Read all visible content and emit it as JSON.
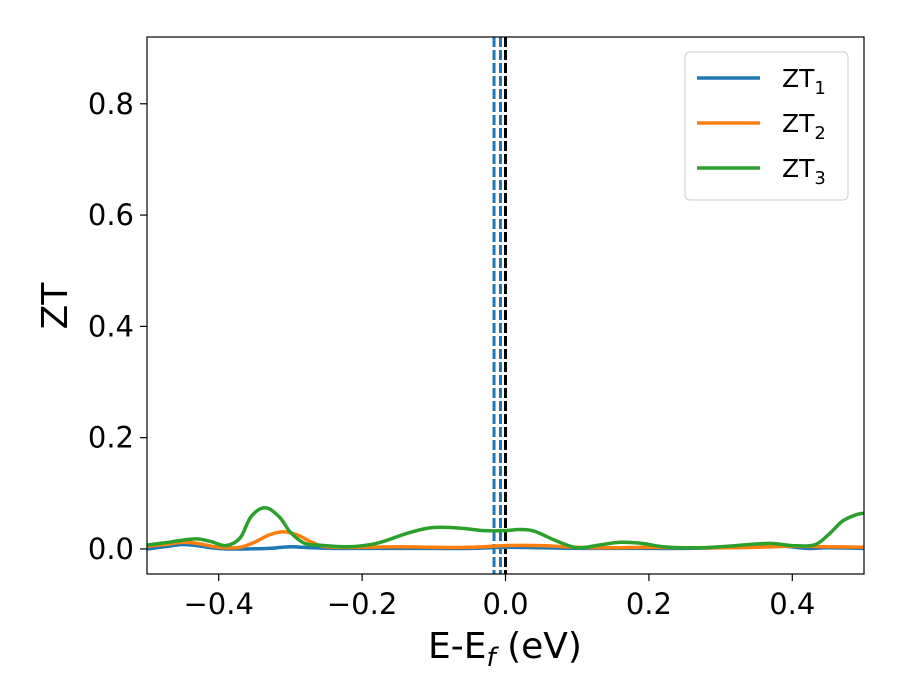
{
  "chart_data": {
    "type": "line",
    "xlabel": "E-E",
    "xlabel_sub": "f",
    "xlabel_unit": " (eV)",
    "ylabel": "ZT",
    "xlim": [
      -0.5,
      0.5
    ],
    "ylim": [
      -0.045,
      0.92
    ],
    "xticks": [
      -0.4,
      -0.2,
      0.0,
      0.2,
      0.4
    ],
    "xtick_labels": [
      "−0.4",
      "−0.2",
      "0.0",
      "0.2",
      "0.4"
    ],
    "yticks": [
      0.0,
      0.2,
      0.4,
      0.6,
      0.8
    ],
    "ytick_labels": [
      "0.0",
      "0.2",
      "0.4",
      "0.6",
      "0.8"
    ],
    "grid": false,
    "legend": "top-right",
    "vlines": [
      {
        "x": -0.016,
        "style": "dashed",
        "color": "#1f77b4"
      },
      {
        "x": -0.007,
        "style": "dashed",
        "color": "#1f77b4"
      },
      {
        "x": 0.0,
        "style": "dashed",
        "color": "#000000"
      }
    ],
    "series": [
      {
        "name": "ZT",
        "name_sub": "1",
        "color": "#1f77b4",
        "x": [
          -0.5,
          -0.47,
          -0.45,
          -0.43,
          -0.41,
          -0.39,
          -0.37,
          -0.33,
          -0.3,
          -0.27,
          -0.24,
          -0.2,
          -0.15,
          -0.1,
          -0.05,
          0.0,
          0.05,
          0.1,
          0.15,
          0.2,
          0.25,
          0.3,
          0.35,
          0.38,
          0.42,
          0.45,
          0.5
        ],
        "y": [
          0.0,
          0.005,
          0.008,
          0.006,
          0.002,
          0.0,
          0.0,
          0.001,
          0.004,
          0.002,
          0.001,
          0.001,
          0.001,
          0.001,
          0.001,
          0.003,
          0.002,
          0.001,
          0.001,
          0.001,
          0.001,
          0.002,
          0.004,
          0.006,
          0.001,
          0.002,
          0.001
        ]
      },
      {
        "name": "ZT",
        "name_sub": "2",
        "color": "#ff7f0e",
        "x": [
          -0.5,
          -0.47,
          -0.45,
          -0.43,
          -0.41,
          -0.39,
          -0.37,
          -0.35,
          -0.33,
          -0.31,
          -0.29,
          -0.27,
          -0.25,
          -0.2,
          -0.15,
          -0.1,
          -0.05,
          0.0,
          0.05,
          0.1,
          0.15,
          0.2,
          0.25,
          0.3,
          0.35,
          0.4,
          0.45,
          0.5
        ],
        "y": [
          0.005,
          0.009,
          0.012,
          0.01,
          0.005,
          0.002,
          0.003,
          0.012,
          0.025,
          0.031,
          0.025,
          0.012,
          0.004,
          0.003,
          0.004,
          0.003,
          0.003,
          0.006,
          0.006,
          0.003,
          0.002,
          0.003,
          0.002,
          0.002,
          0.003,
          0.005,
          0.004,
          0.003
        ]
      },
      {
        "name": "ZT",
        "name_sub": "3",
        "color": "#2ca02c",
        "x": [
          -0.5,
          -0.47,
          -0.45,
          -0.43,
          -0.41,
          -0.39,
          -0.37,
          -0.355,
          -0.335,
          -0.315,
          -0.3,
          -0.28,
          -0.26,
          -0.22,
          -0.18,
          -0.14,
          -0.11,
          -0.09,
          -0.06,
          -0.03,
          0.0,
          0.02,
          0.04,
          0.07,
          0.1,
          0.13,
          0.16,
          0.19,
          0.22,
          0.26,
          0.3,
          0.34,
          0.37,
          0.4,
          0.43,
          0.45,
          0.47,
          0.49,
          0.5
        ],
        "y": [
          0.007,
          0.012,
          0.016,
          0.018,
          0.013,
          0.006,
          0.02,
          0.058,
          0.074,
          0.057,
          0.03,
          0.01,
          0.007,
          0.004,
          0.01,
          0.027,
          0.037,
          0.039,
          0.037,
          0.033,
          0.033,
          0.035,
          0.032,
          0.015,
          0.002,
          0.007,
          0.012,
          0.01,
          0.004,
          0.002,
          0.004,
          0.008,
          0.01,
          0.006,
          0.007,
          0.025,
          0.05,
          0.062,
          0.064
        ]
      }
    ]
  }
}
